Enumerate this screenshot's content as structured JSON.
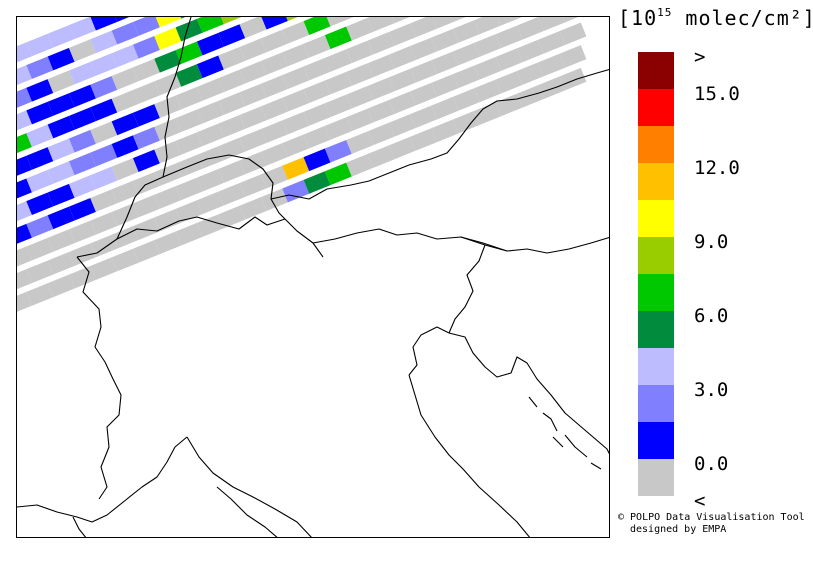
{
  "legend": {
    "units_prefix": "[10",
    "units_exp": "15",
    "units_suffix": " molec/cm²]",
    "scale": [
      {
        "label": ">",
        "color": "#8b0000"
      },
      {
        "label": "15.0",
        "color": "#ff0000"
      },
      {
        "label": "",
        "color": "#ff7f00"
      },
      {
        "label": "12.0",
        "color": "#ffc000"
      },
      {
        "label": "",
        "color": "#ffff00"
      },
      {
        "label": "9.0",
        "color": "#9acd00"
      },
      {
        "label": "",
        "color": "#00c800"
      },
      {
        "label": "6.0",
        "color": "#008c3c"
      },
      {
        "label": "",
        "color": "#bcbcff"
      },
      {
        "label": "3.0",
        "color": "#8080ff"
      },
      {
        "label": "",
        "color": "#0000ff"
      },
      {
        "label": "0.0",
        "color": "#c8c8c8"
      },
      {
        "label": "<",
        "color": ""
      }
    ]
  },
  "credits": {
    "line1": "© POLPO Data Visualisation Tool",
    "line2": "designed by EMPA"
  },
  "colors": {
    "nodata": "#c8c8c8",
    "border": "#000000"
  }
}
